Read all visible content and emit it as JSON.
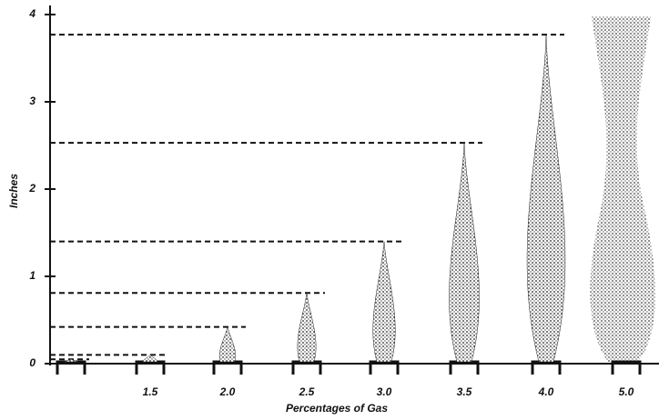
{
  "chart_data": {
    "type": "flame",
    "x_label": "Percentages of Gas",
    "y_label": "Inches",
    "categories": [
      null,
      "1.5",
      "2.0",
      "2.5",
      "3.0",
      "3.5",
      "4.0",
      "5.0"
    ],
    "values": [
      0.05,
      0.1,
      0.42,
      0.81,
      1.4,
      2.53,
      3.77,
      null
    ],
    "ylim": [
      0,
      4
    ],
    "yticks": [
      0,
      1,
      2,
      3,
      4
    ],
    "color": "#222"
  }
}
